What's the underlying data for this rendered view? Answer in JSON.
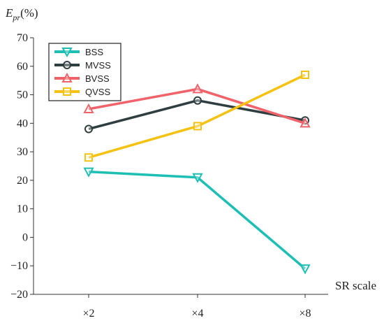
{
  "chart_data": {
    "type": "line",
    "ylabel": "E",
    "ylabel_sub": "pr",
    "ylabel_unit": "(%)",
    "xlabel": "SR scale",
    "categories": [
      "×2",
      "×4",
      "×8"
    ],
    "ylim": [
      -20,
      70
    ],
    "yticks": [
      -20,
      -10,
      0,
      10,
      20,
      30,
      40,
      50,
      60,
      70
    ],
    "grid": false,
    "legend_position": "top-left",
    "series": [
      {
        "name": "BSS",
        "values": [
          23,
          21,
          -11
        ],
        "color": "#1dbfb4",
        "marker": "triangle-down"
      },
      {
        "name": "MVSS",
        "values": [
          38,
          48,
          41
        ],
        "color": "#2f3e40",
        "marker": "circle"
      },
      {
        "name": "BVSS",
        "values": [
          45,
          52,
          40
        ],
        "color": "#f0636a",
        "marker": "triangle-up"
      },
      {
        "name": "QVSS",
        "values": [
          28,
          39,
          57
        ],
        "color": "#f5c211",
        "marker": "square"
      }
    ]
  }
}
